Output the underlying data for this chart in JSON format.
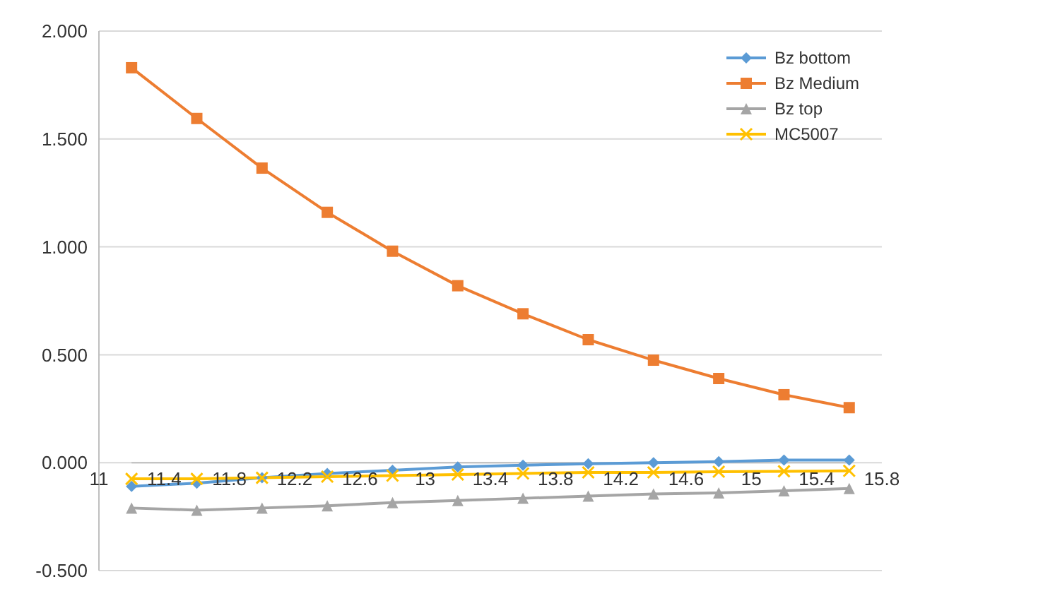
{
  "chart_data": {
    "type": "line",
    "x": [
      11.2,
      11.6,
      12.0,
      12.4,
      12.8,
      13.2,
      13.6,
      14.0,
      14.4,
      14.8,
      15.2,
      15.6
    ],
    "series": [
      {
        "name": "Bz bottom",
        "color": "#5b9bd5",
        "marker": "diamond",
        "values": [
          -0.11,
          -0.095,
          -0.07,
          -0.05,
          -0.035,
          -0.02,
          -0.012,
          -0.005,
          0.0,
          0.005,
          0.012,
          0.012
        ]
      },
      {
        "name": "Bz Medium",
        "color": "#ed7d31",
        "marker": "square",
        "values": [
          1.83,
          1.595,
          1.365,
          1.16,
          0.98,
          0.82,
          0.69,
          0.57,
          0.475,
          0.39,
          0.315,
          0.255
        ]
      },
      {
        "name": "Bz top",
        "color": "#a5a5a5",
        "marker": "triangle",
        "values": [
          -0.21,
          -0.22,
          -0.21,
          -0.2,
          -0.185,
          -0.175,
          -0.165,
          -0.155,
          -0.145,
          -0.14,
          -0.13,
          -0.12
        ]
      },
      {
        "name": "MC5007",
        "color": "#ffc000",
        "marker": "cross",
        "values": [
          -0.075,
          -0.075,
          -0.07,
          -0.065,
          -0.06,
          -0.055,
          -0.05,
          -0.045,
          -0.045,
          -0.042,
          -0.04,
          -0.038
        ]
      }
    ],
    "xlim": [
      11,
      15.8
    ],
    "xticks": [
      11,
      11.4,
      11.8,
      12.2,
      12.6,
      13,
      13.4,
      13.8,
      14.2,
      14.6,
      15,
      15.4,
      15.8
    ],
    "ylim": [
      -0.5,
      2
    ],
    "yticks": [
      {
        "value": -0.5,
        "label": "-0.500"
      },
      {
        "value": 0,
        "label": "0.000"
      },
      {
        "value": 0.5,
        "label": "0.500"
      },
      {
        "value": 1,
        "label": "1.000"
      },
      {
        "value": 1.5,
        "label": "1.500"
      },
      {
        "value": 2,
        "label": "2.000"
      }
    ],
    "grid": "y",
    "legend": "top right"
  }
}
